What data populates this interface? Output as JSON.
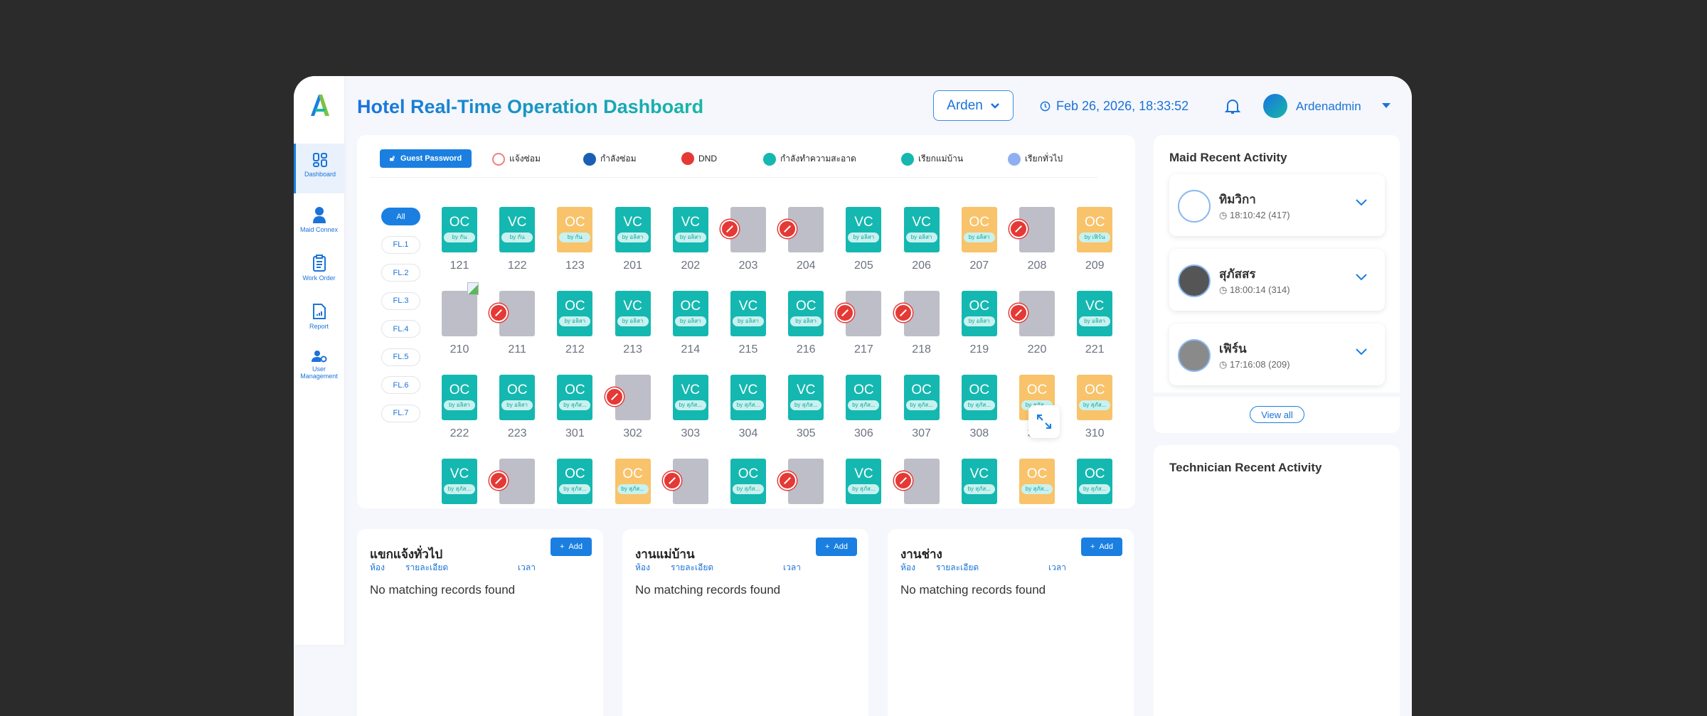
{
  "header": {
    "title": "Hotel Real-Time Operation Dashboard",
    "property": "Arden",
    "datetime": "Feb 26, 2026, 18:33:52",
    "username": "Ardenadmin"
  },
  "sidebar": {
    "items": [
      {
        "label": "Dashboard",
        "icon": "dashboard-icon"
      },
      {
        "label": "Maid Connex",
        "icon": "maid-icon"
      },
      {
        "label": "Work Order",
        "icon": "clipboard-icon"
      },
      {
        "label": "Report",
        "icon": "report-icon"
      },
      {
        "label": "User Management",
        "icon": "user-gear-icon"
      }
    ]
  },
  "legend": {
    "guest_password": "Guest Password",
    "items": [
      {
        "label": "แจ้งซ่อม",
        "color": "#f08080"
      },
      {
        "label": "กำลังซ่อม",
        "color": "#1a5fb4"
      },
      {
        "label": "DND",
        "color": "#e53935"
      },
      {
        "label": "กำลังทำความสะอาด",
        "color": "#14b8b0"
      },
      {
        "label": "เรียกแม่บ้าน",
        "color": "#14b8b0"
      },
      {
        "label": "เรียกทั่วไป",
        "color": "#8fb0f0"
      }
    ]
  },
  "floors": [
    "All",
    "FL.1",
    "FL.2",
    "FL.3",
    "FL.4",
    "FL.5",
    "FL.6",
    "FL.7"
  ],
  "colors": {
    "teal": "#14b8b0",
    "orange": "#f8c36a",
    "gray": "#bdbec8",
    "primary": "#1a7fe0"
  },
  "rooms": [
    {
      "no": "121",
      "status": "OC",
      "color": "teal",
      "by": "by กัน"
    },
    {
      "no": "122",
      "status": "VC",
      "color": "teal",
      "by": "by กัน"
    },
    {
      "no": "123",
      "status": "OC",
      "color": "orange",
      "by": "by กัน"
    },
    {
      "no": "201",
      "status": "VC",
      "color": "teal",
      "by": "by อลิสา"
    },
    {
      "no": "202",
      "status": "VC",
      "color": "teal",
      "by": "by อลิสา"
    },
    {
      "no": "203",
      "dnd": true
    },
    {
      "no": "204",
      "dnd": true
    },
    {
      "no": "205",
      "status": "VC",
      "color": "teal",
      "by": "by อลิสา"
    },
    {
      "no": "206",
      "status": "VC",
      "color": "teal",
      "by": "by อลิสา"
    },
    {
      "no": "207",
      "status": "OC",
      "color": "orange",
      "by": "by อลิสา"
    },
    {
      "no": "208",
      "dnd": true
    },
    {
      "no": "209",
      "status": "OC",
      "color": "orange",
      "by": "by เฟิร์น"
    },
    {
      "no": "210",
      "broken": true
    },
    {
      "no": "211",
      "dnd": true
    },
    {
      "no": "212",
      "status": "OC",
      "color": "teal",
      "by": "by อลิสา"
    },
    {
      "no": "213",
      "status": "VC",
      "color": "teal",
      "by": "by อลิสา"
    },
    {
      "no": "214",
      "status": "OC",
      "color": "teal",
      "by": "by อลิสา"
    },
    {
      "no": "215",
      "status": "VC",
      "color": "teal",
      "by": "by อลิสา"
    },
    {
      "no": "216",
      "status": "OC",
      "color": "teal",
      "by": "by อลิสา"
    },
    {
      "no": "217",
      "dnd": true
    },
    {
      "no": "218",
      "dnd": true
    },
    {
      "no": "219",
      "status": "OC",
      "color": "teal",
      "by": "by อลิสา"
    },
    {
      "no": "220",
      "dnd": true
    },
    {
      "no": "221",
      "status": "VC",
      "color": "teal",
      "by": "by อลิสา"
    },
    {
      "no": "222",
      "status": "OC",
      "color": "teal",
      "by": "by อลิสา"
    },
    {
      "no": "223",
      "status": "OC",
      "color": "teal",
      "by": "by อลิสา"
    },
    {
      "no": "301",
      "status": "OC",
      "color": "teal",
      "by": "by สุภัส..."
    },
    {
      "no": "302",
      "dnd": true
    },
    {
      "no": "303",
      "status": "VC",
      "color": "teal",
      "by": "by สุภัส..."
    },
    {
      "no": "304",
      "status": "VC",
      "color": "teal",
      "by": "by สุภัส..."
    },
    {
      "no": "305",
      "status": "VC",
      "color": "teal",
      "by": "by สุภัส..."
    },
    {
      "no": "306",
      "status": "OC",
      "color": "teal",
      "by": "by สุภัส..."
    },
    {
      "no": "307",
      "status": "OC",
      "color": "teal",
      "by": "by สุภัส..."
    },
    {
      "no": "308",
      "status": "OC",
      "color": "teal",
      "by": "by สุภัส..."
    },
    {
      "no": "309",
      "status": "OC",
      "color": "orange",
      "by": "by สุภัส..."
    },
    {
      "no": "310",
      "status": "OC",
      "color": "orange",
      "by": "by สุภัส..."
    },
    {
      "status": "VC",
      "color": "teal",
      "by": "by สุภัส..."
    },
    {
      "dnd": true
    },
    {
      "status": "OC",
      "color": "teal",
      "by": "by สุภัส..."
    },
    {
      "status": "OC",
      "color": "orange",
      "by": "by สุภัส..."
    },
    {
      "dnd": true
    },
    {
      "status": "OC",
      "color": "teal",
      "by": "by สุภัส..."
    },
    {
      "dnd": true
    },
    {
      "status": "VC",
      "color": "teal",
      "by": "by สุภัส..."
    },
    {
      "dnd": true
    },
    {
      "status": "VC",
      "color": "teal",
      "by": "by สุภัส..."
    },
    {
      "status": "OC",
      "color": "orange",
      "by": "by สุภัส..."
    },
    {
      "status": "OC",
      "color": "teal",
      "by": "by สุภัส..."
    }
  ],
  "maid_activity": {
    "title": "Maid Recent Activity",
    "view_all": "View all",
    "items": [
      {
        "name": "ทิมวิกา",
        "time": "18:10:42 (417)"
      },
      {
        "name": "สุภัสสร",
        "time": "18:00:14 (314)"
      },
      {
        "name": "เฟิร์น",
        "time": "17:16:08 (209)"
      }
    ]
  },
  "technician_activity": {
    "title": "Technician Recent Activity"
  },
  "panels": [
    {
      "title": "แขกแจ้งทั่วไป",
      "add": "Add",
      "cols": [
        "ห้อง",
        "รายละเอียด",
        "เวลา"
      ],
      "empty": "No matching records found"
    },
    {
      "title": "งานแม่บ้าน",
      "add": "Add",
      "cols": [
        "ห้อง",
        "รายละเอียด",
        "เวลา"
      ],
      "empty": "No matching records found"
    },
    {
      "title": "งานช่าง",
      "add": "Add",
      "cols": [
        "ห้อง",
        "รายละเอียด",
        "เวลา"
      ],
      "empty": "No matching records found"
    }
  ]
}
